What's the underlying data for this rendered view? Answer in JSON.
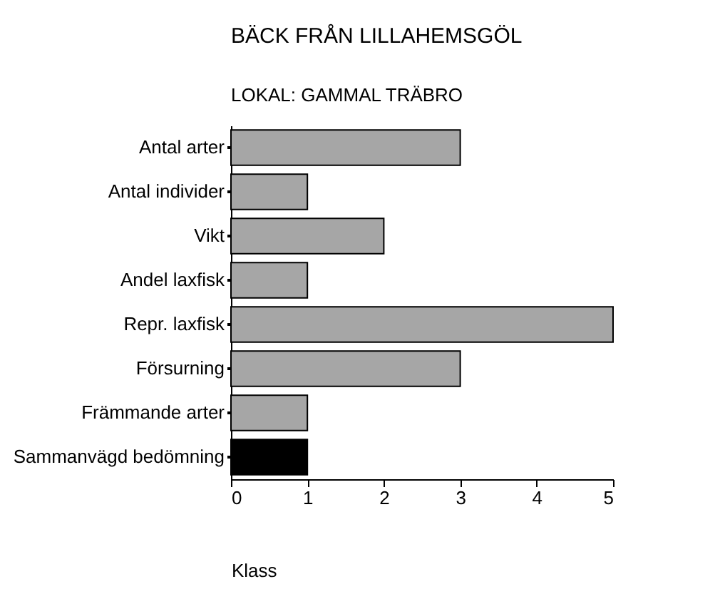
{
  "chart_data": {
    "type": "bar",
    "orientation": "horizontal",
    "title": "BÄCK FRÅN LILLAHEMSGÖL",
    "subtitle": "LOKAL:  GAMMAL TRÄBRO",
    "xlabel": "Klass",
    "categories": [
      "Antal arter",
      "Antal individer",
      "Vikt",
      "Andel laxfisk",
      "Repr. laxfisk",
      "Försurning",
      "Främmande arter",
      "Sammanvägd bedömning"
    ],
    "values": [
      3,
      1,
      2,
      1,
      5,
      3,
      1,
      1
    ],
    "colors": [
      "#a6a6a6",
      "#a6a6a6",
      "#a6a6a6",
      "#a6a6a6",
      "#a6a6a6",
      "#a6a6a6",
      "#a6a6a6",
      "#000000"
    ],
    "xlim": [
      0,
      5
    ],
    "xticks": [
      0,
      1,
      2,
      3,
      4,
      5
    ],
    "grid": false
  }
}
